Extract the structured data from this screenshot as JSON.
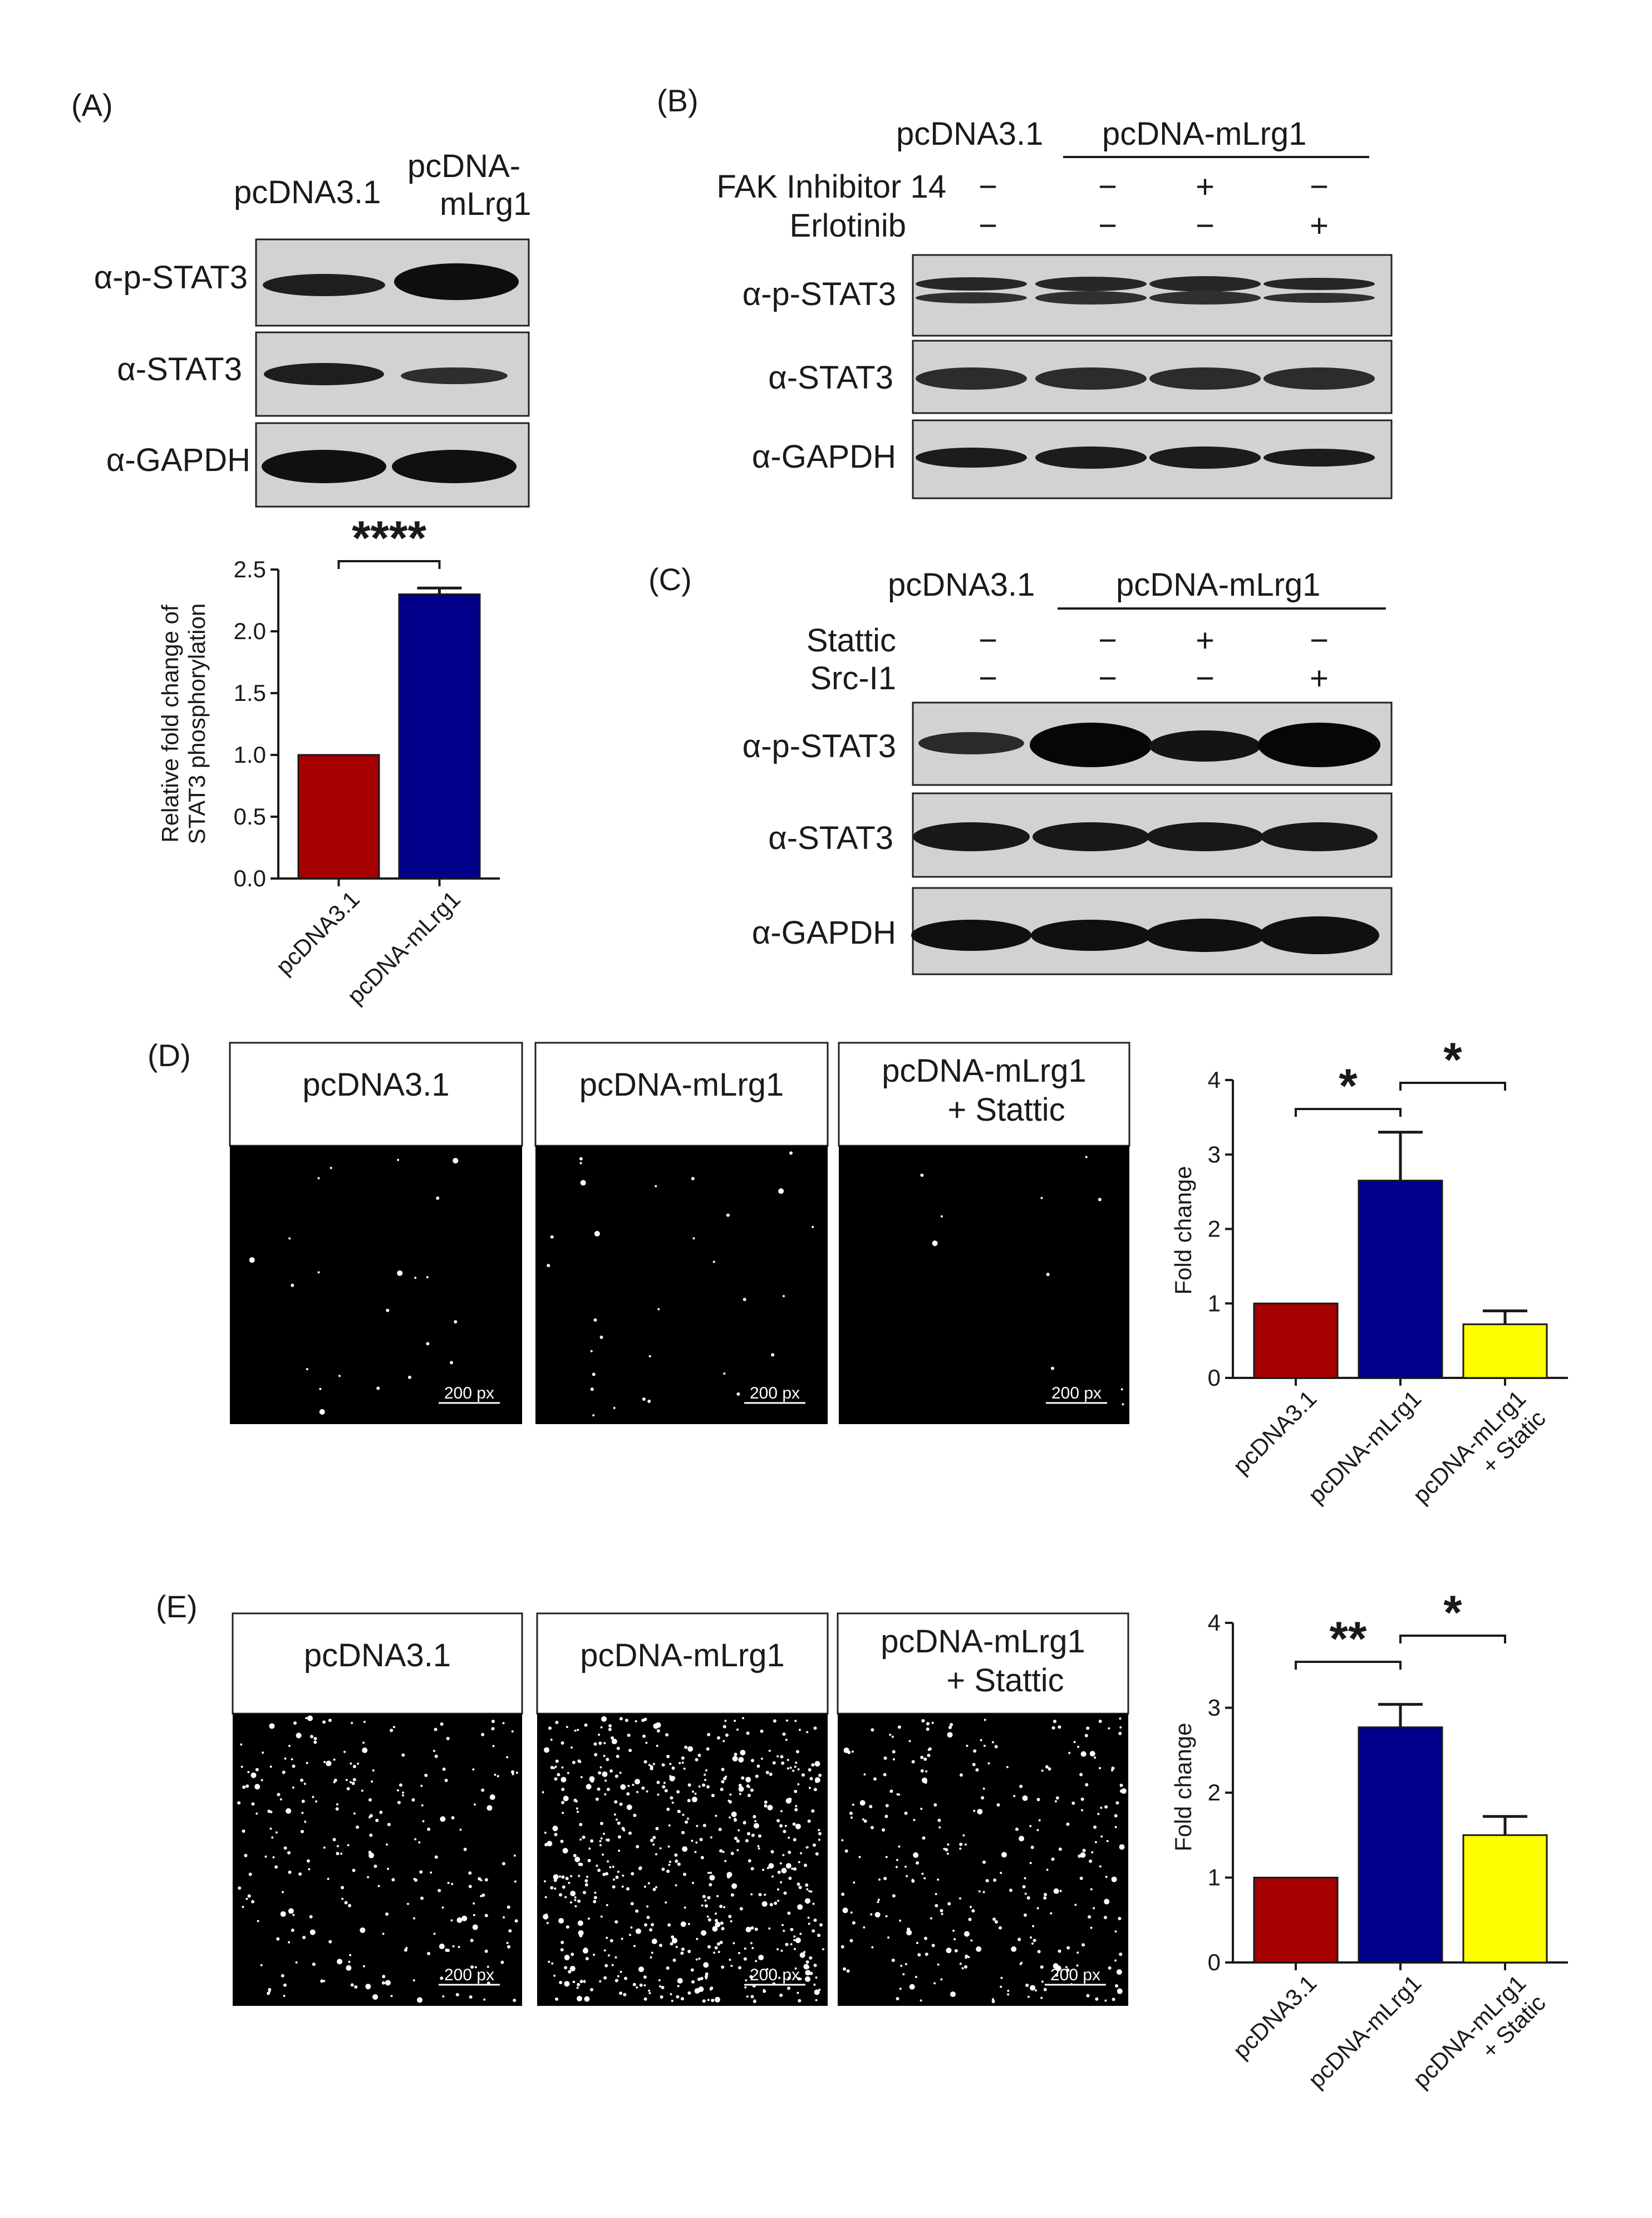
{
  "panels": {
    "A": {
      "letter": "(A)",
      "lanes": [
        "pcDNA3.1",
        "pcDNA-\nmLrg1"
      ],
      "blots": [
        "α-p-STAT3",
        "α-STAT3",
        "α-GAPDH"
      ]
    },
    "B": {
      "letter": "(B)",
      "group_left": "pcDNA3.1",
      "group_right": "pcDNA-mLrg1",
      "treatments": [
        {
          "name": "FAK Inhibitor 14",
          "marks": [
            "−",
            "−",
            "+",
            "−"
          ]
        },
        {
          "name": "Erlotinib",
          "marks": [
            "−",
            "−",
            "−",
            "+"
          ]
        }
      ],
      "blots": [
        "α-p-STAT3",
        "α-STAT3",
        "α-GAPDH"
      ]
    },
    "C": {
      "letter": "(C)",
      "group_left": "pcDNA3.1",
      "group_right": "pcDNA-mLrg1",
      "treatments": [
        {
          "name": "Stattic",
          "marks": [
            "−",
            "−",
            "+",
            "−"
          ]
        },
        {
          "name": "Src-I1",
          "marks": [
            "−",
            "−",
            "−",
            "+"
          ]
        }
      ],
      "blots": [
        "α-p-STAT3",
        "α-STAT3",
        "α-GAPDH"
      ]
    },
    "D": {
      "letter": "(D)",
      "image_headers": [
        "pcDNA3.1",
        "pcDNA-mLrg1",
        "pcDNA-mLrg1\n+ Stattic"
      ],
      "scale": "200 px"
    },
    "E": {
      "letter": "(E)",
      "image_headers": [
        "pcDNA3.1",
        "pcDNA-mLrg1",
        "pcDNA-mLrg1\n+ Stattic"
      ],
      "scale": "200 px"
    }
  },
  "chart_data": [
    {
      "id": "A",
      "type": "bar",
      "categories": [
        "pcDNA3.1",
        "pcDNA-mLrg1"
      ],
      "values": [
        1.0,
        2.3
      ],
      "errors": [
        0,
        0.05
      ],
      "colors": [
        "#a60000",
        "#00008b"
      ],
      "ylabel": "Relative fold change of\nSTAT3 phosphorylation",
      "ylim": [
        0,
        2.5
      ],
      "yticks": [
        "0.0",
        "0.5",
        "1.0",
        "1.5",
        "2.0",
        "2.5"
      ],
      "significance": [
        {
          "pair": [
            0,
            1
          ],
          "label": "****"
        }
      ]
    },
    {
      "id": "D",
      "type": "bar",
      "categories": [
        "pcDNA3.1",
        "pcDNA-mLrg1",
        "pcDNA-mLrg1\n+ Static"
      ],
      "values": [
        1.0,
        2.65,
        0.72
      ],
      "errors": [
        0,
        0.65,
        0.18
      ],
      "colors": [
        "#a60000",
        "#00008b",
        "#ffff00"
      ],
      "ylabel": "Fold change",
      "ylim": [
        0,
        4
      ],
      "yticks": [
        "0",
        "1",
        "2",
        "3",
        "4"
      ],
      "significance": [
        {
          "pair": [
            0,
            1
          ],
          "label": "*"
        },
        {
          "pair": [
            1,
            2
          ],
          "label": "*"
        }
      ]
    },
    {
      "id": "E",
      "type": "bar",
      "categories": [
        "pcDNA3.1",
        "pcDNA-mLrg1",
        "pcDNA-mLrg1\n+ Static"
      ],
      "values": [
        1.0,
        2.77,
        1.5
      ],
      "errors": [
        0,
        0.27,
        0.22
      ],
      "colors": [
        "#a60000",
        "#00008b",
        "#ffff00"
      ],
      "ylabel": "Fold change",
      "ylim": [
        0,
        4
      ],
      "yticks": [
        "0",
        "1",
        "2",
        "3",
        "4"
      ],
      "significance": [
        {
          "pair": [
            0,
            1
          ],
          "label": "**"
        },
        {
          "pair": [
            1,
            2
          ],
          "label": "*"
        }
      ]
    }
  ]
}
